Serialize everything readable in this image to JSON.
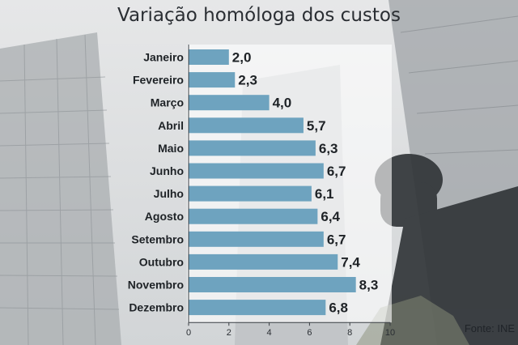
{
  "chart_data": {
    "type": "bar",
    "orientation": "horizontal",
    "title": "Variação homóloga dos custos",
    "categories": [
      "Janeiro",
      "Fevereiro",
      "Março",
      "Abril",
      "Maio",
      "Junho",
      "Julho",
      "Agosto",
      "Setembro",
      "Outubro",
      "Novembro",
      "Dezembro"
    ],
    "values": [
      2.0,
      2.3,
      4.0,
      5.7,
      6.3,
      6.7,
      6.1,
      6.4,
      6.7,
      7.4,
      8.3,
      6.8
    ],
    "value_labels": [
      "2,0",
      "2,3",
      "4,0",
      "5,7",
      "6,3",
      "6,7",
      "6,1",
      "6,4",
      "6,7",
      "7,4",
      "8,3",
      "6,8"
    ],
    "xlim": [
      0,
      10
    ],
    "xticks": [
      0,
      2,
      4,
      6,
      8,
      10
    ],
    "xtick_labels": [
      "0",
      "2",
      "4",
      "6",
      "8",
      "10"
    ],
    "grid": false,
    "bar_color": "#6ea3bf",
    "source": "Fonte: INE"
  }
}
